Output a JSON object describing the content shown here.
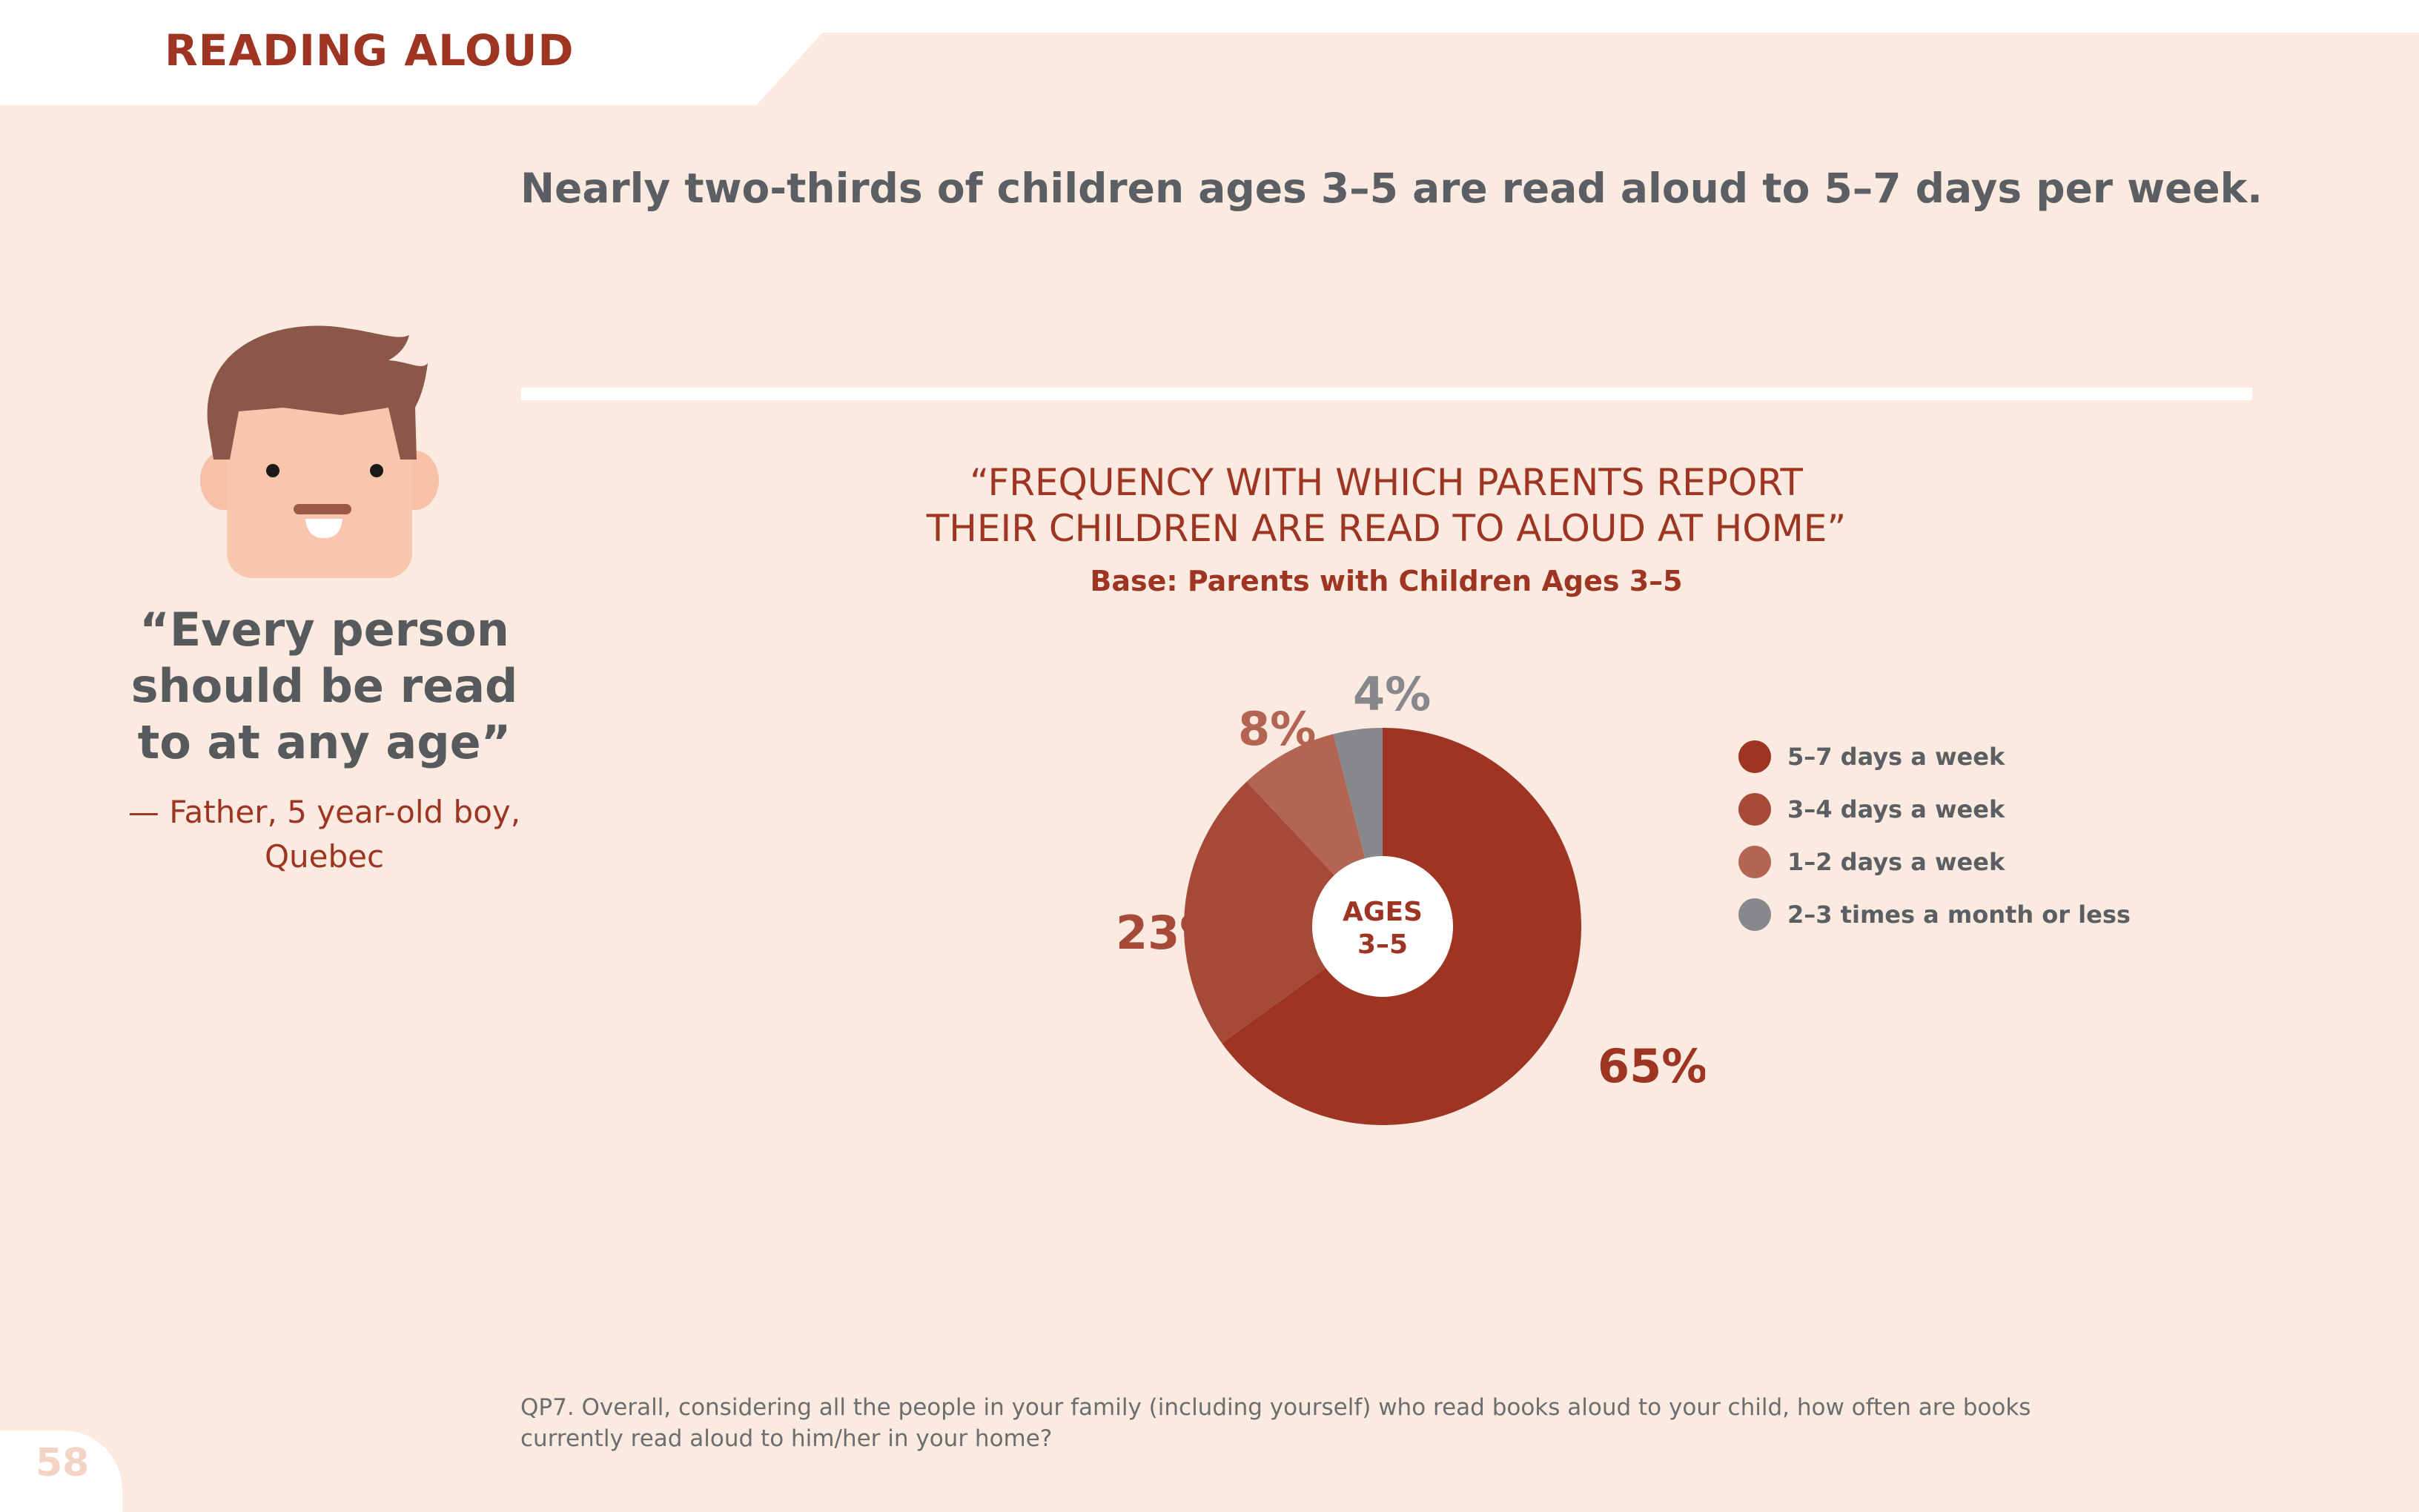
{
  "header": {
    "section_title": "READING ALOUD"
  },
  "headline": "Nearly two-thirds of children ages 3–5 are read aloud to 5–7 days per week.",
  "quote": {
    "lines": [
      "“Every person",
      "should be read",
      "to at any age”"
    ],
    "attribution_lines": [
      "— Father, 5 year-old boy,",
      "Quebec"
    ]
  },
  "chart_data": {
    "type": "pie",
    "title": "“FREQUENCY WITH WHICH PARENTS REPORT THEIR CHILDREN ARE READ TO ALOUD AT HOME”",
    "title_lines": [
      "“FREQUENCY WITH WHICH PARENTS REPORT",
      "THEIR CHILDREN ARE READ TO ALOUD AT HOME”"
    ],
    "subtitle": "Base: Parents with Children Ages 3–5",
    "center_label_lines": [
      "AGES",
      "3–5"
    ],
    "legend_position": "right",
    "categories": [
      "5–7 days a week",
      "3–4 days a week",
      "1–2 days a week",
      "2–3 times a month or less"
    ],
    "values": [
      65,
      23,
      8,
      4
    ],
    "value_labels": [
      "65%",
      "23%",
      "8%",
      "4%"
    ],
    "colors": [
      "#9d3522",
      "#a54a38",
      "#b36453",
      "#87888b"
    ]
  },
  "footnote": {
    "lines": [
      "QP7. Overall, considering all the people in your family (including yourself) who read books aloud to your child, how often are books",
      "currently read aloud to him/her in your home?"
    ]
  },
  "page_number": "58",
  "colors": {
    "accent": "#9d3522",
    "background": "#fbeae0",
    "text_gray": "#5b5f63"
  }
}
